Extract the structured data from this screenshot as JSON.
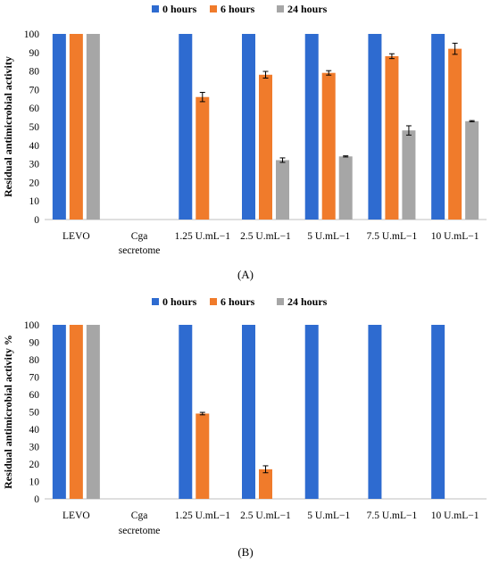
{
  "chart_data": [
    {
      "type": "bar",
      "panel_label": "(A)",
      "ylabel": "Residual antimicrobial activity",
      "ylim": [
        0,
        100
      ],
      "yticks": [
        0,
        10,
        20,
        30,
        40,
        50,
        60,
        70,
        80,
        90,
        100
      ],
      "legend_position": "top",
      "categories": [
        "LEVO",
        "Cga secretome",
        "1.25 U.mL−1",
        "2.5 U.mL−1",
        "5 U.mL−1",
        "7.5 U.mL−1",
        "10 U.mL−1"
      ],
      "series": [
        {
          "name": "0 hours",
          "color": "#2e6bd0",
          "values": [
            100,
            null,
            100,
            100,
            100,
            100,
            100
          ],
          "errors": [
            0,
            null,
            0,
            0,
            0,
            0,
            0
          ]
        },
        {
          "name": "6 hours",
          "color": "#f07b2b",
          "values": [
            100,
            null,
            66,
            78,
            79,
            88,
            92
          ],
          "errors": [
            0,
            null,
            2.5,
            1.8,
            1.2,
            1.3,
            3
          ]
        },
        {
          "name": "24 hours",
          "color": "#a6a6a6",
          "values": [
            100,
            null,
            null,
            32,
            34,
            48,
            53
          ],
          "errors": [
            0,
            null,
            null,
            1.2,
            0.3,
            2.5,
            0.3
          ]
        }
      ]
    },
    {
      "type": "bar",
      "panel_label": "(B)",
      "ylabel": "Residual antimicrobial activity %",
      "ylim": [
        0,
        100
      ],
      "yticks": [
        0,
        10,
        20,
        30,
        40,
        50,
        60,
        70,
        80,
        90,
        100
      ],
      "legend_position": "top",
      "categories": [
        "LEVO",
        "Cga secretome",
        "1.25 U.mL−1",
        "2.5 U.mL−1",
        "5 U.mL−1",
        "7.5 U.mL−1",
        "10 U.mL−1"
      ],
      "series": [
        {
          "name": "0 hours",
          "color": "#2e6bd0",
          "values": [
            100,
            null,
            100,
            100,
            100,
            100,
            100
          ],
          "errors": [
            0,
            null,
            0,
            0,
            0,
            0,
            0
          ]
        },
        {
          "name": "6 hours",
          "color": "#f07b2b",
          "values": [
            100,
            null,
            49,
            17,
            null,
            null,
            null
          ],
          "errors": [
            0,
            null,
            0.7,
            2,
            null,
            null,
            null
          ]
        },
        {
          "name": "24 hours",
          "color": "#a6a6a6",
          "values": [
            100,
            null,
            null,
            null,
            null,
            null,
            null
          ],
          "errors": [
            0,
            null,
            null,
            null,
            null,
            null,
            null
          ]
        }
      ]
    }
  ]
}
